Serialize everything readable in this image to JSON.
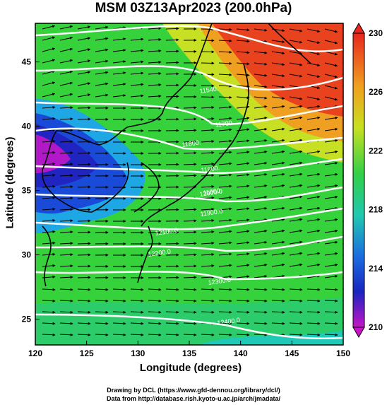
{
  "title": "MSM 03Z13Apr2023 (200.0hPa)",
  "xlabel": "Longitude (degrees)",
  "ylabel": "Latitude  (degrees)",
  "credits": [
    "Drawing by DCL (https://www.gfd-dennou.org/library/dcl/)",
    "Data from http://database.rish.kyoto-u.ac.jp/arch/jmadata/"
  ],
  "x_ticks": [
    "120",
    "125",
    "130",
    "135",
    "140",
    "145",
    "150"
  ],
  "y_ticks": [
    "25",
    "30",
    "35",
    "40",
    "45"
  ],
  "colorbar_ticks": [
    "230",
    "226",
    "222",
    "218",
    "214",
    "210"
  ],
  "contour_labels": [
    "11540.",
    "11700.",
    "11800.",
    "11800.",
    "11800.",
    "11900.0",
    "12000.0",
    "12100.0",
    "12200.0",
    "12300.0",
    "12400.0"
  ],
  "chart_data": {
    "type": "map",
    "xlim": [
      120,
      150
    ],
    "ylim": [
      23,
      48
    ],
    "colorbar_range": [
      210,
      230
    ],
    "colors": {
      "warm": "#e83a1e",
      "mid": "#37d63a",
      "cool": "#17a8e6",
      "cold": "#1a28c8",
      "min": "#cc10c0",
      "contour": "#ffffff",
      "coast": "#000000"
    }
  }
}
